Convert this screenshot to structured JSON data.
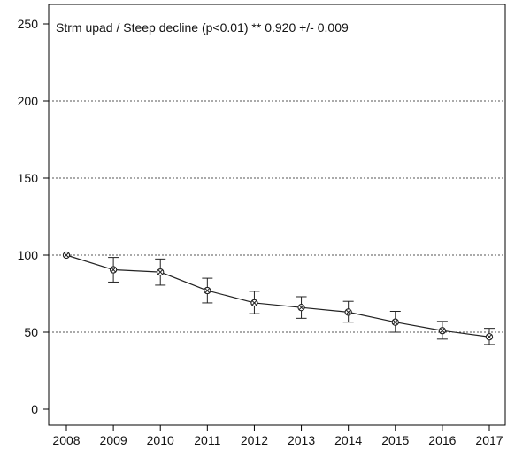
{
  "chart_data": {
    "type": "line",
    "title": "Strm upad / Steep decline (p<0.01) **  0.920 +/- 0.009",
    "xlabel": "",
    "ylabel": "",
    "x": [
      2008,
      2009,
      2010,
      2011,
      2012,
      2013,
      2014,
      2015,
      2016,
      2017
    ],
    "x_tick_labels": [
      "2008",
      "2009",
      "2010",
      "2011",
      "2012",
      "2013",
      "2014",
      "2015",
      "2016",
      "2017"
    ],
    "y_ticks": [
      0,
      50,
      100,
      150,
      200,
      250
    ],
    "y_tick_labels": [
      "0",
      "50",
      "100",
      "150",
      "200",
      "250"
    ],
    "ylim": [
      0,
      250
    ],
    "grid": "horizontal dotted at 50, 100, 150, 200",
    "series": [
      {
        "values": [
          100,
          90.5,
          89,
          77,
          69,
          66,
          63,
          56.5,
          51,
          47
        ],
        "err_low": [
          100,
          82.5,
          80.5,
          69,
          62,
          59,
          56.5,
          50,
          45.5,
          42
        ],
        "err_high": [
          100,
          98.5,
          97.5,
          85,
          76.5,
          73,
          70,
          63.5,
          57,
          52.5
        ],
        "color": "#222222",
        "marker": "crossed-circle"
      }
    ]
  }
}
